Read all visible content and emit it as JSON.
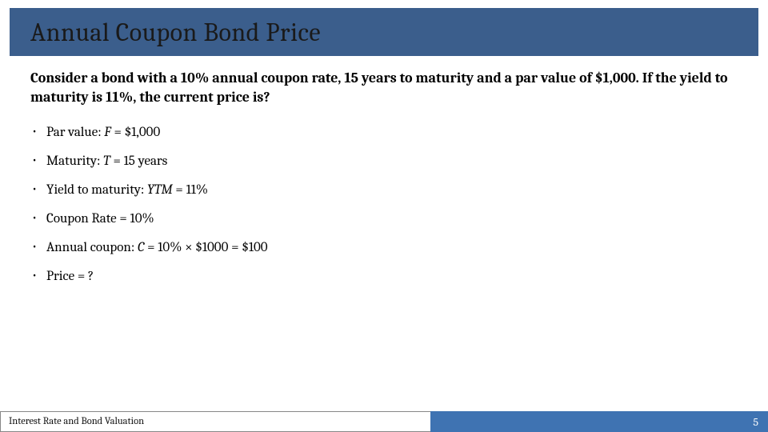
{
  "colors": {
    "header_bg": "#3b5e8c",
    "footer_right_bg": "#3f73b2",
    "text": "#000000",
    "title_text": "#1a1a1a",
    "page_bg": "#ffffff"
  },
  "title": "Annual Coupon Bond Price",
  "lead": "Consider a bond with a 10% annual coupon rate, 15 years to maturity and a par value of $1,000. If the yield to maturity is 11%, the current price is?",
  "params": {
    "par_value": {
      "label": "Par value:",
      "var": "F",
      "eq": "= $1,000"
    },
    "maturity": {
      "label": "Maturity:",
      "var": "T",
      "eq": "= 15 years"
    },
    "ytm": {
      "label": "Yield to maturity:",
      "var": "YTM",
      "eq": "= 11%"
    },
    "coupon_rate": {
      "label": "Coupon Rate",
      "eq": "= 10%"
    },
    "annual_coupon": {
      "label": "Annual coupon:",
      "var": "C",
      "eq": "= 10% × $1000 = $100"
    },
    "price": {
      "label": "Price = ?"
    }
  },
  "footer": {
    "left": "Interest Rate and Bond Valuation",
    "page": "5"
  }
}
